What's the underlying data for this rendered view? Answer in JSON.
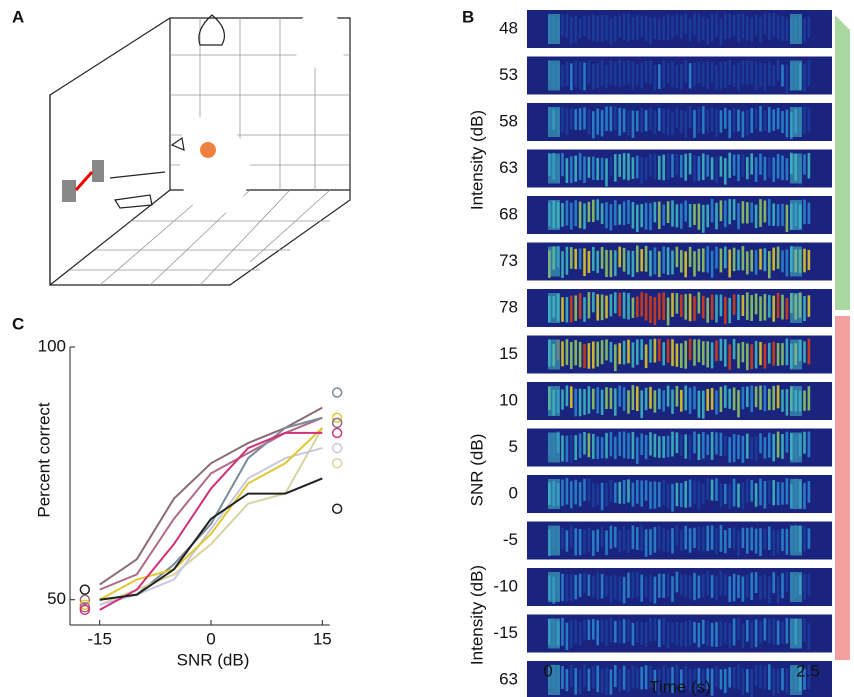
{
  "panels": {
    "a": {
      "label": "A"
    },
    "b": {
      "label": "B",
      "rows": [
        "48",
        "53",
        "58",
        "63",
        "68",
        "73",
        "78",
        "15",
        "10",
        "5",
        "0",
        "-5",
        "-10",
        "-15",
        "63"
      ],
      "axis_labels": [
        "Intensity (dB)",
        "SNR (dB)",
        "Intensity (dB)"
      ],
      "time_ticks": [
        "0",
        "2.5"
      ],
      "time_label": "Time (s)"
    },
    "c": {
      "label": "C"
    }
  },
  "chart_data": {
    "type": "line",
    "xlabel": "SNR (dB)",
    "ylabel": "Percent correct",
    "x": [
      -15,
      -10,
      -5,
      0,
      5,
      10,
      15
    ],
    "xlim": [
      -19,
      19
    ],
    "ylim": [
      45,
      100
    ],
    "xticks": [
      -15,
      0,
      15
    ],
    "yticks": [
      50,
      100
    ],
    "series": [
      {
        "color": "#8c6a78",
        "values": [
          53,
          58,
          70,
          77,
          81,
          84,
          88
        ]
      },
      {
        "color": "#b06a8a",
        "values": [
          52,
          55,
          66,
          75,
          79,
          83,
          86
        ]
      },
      {
        "color": "#7a8c99",
        "values": [
          50,
          51,
          57,
          65,
          78,
          84,
          86
        ]
      },
      {
        "color": "#d8d3a0",
        "values": [
          49,
          52,
          55,
          61,
          69,
          71,
          84
        ]
      },
      {
        "color": "#c8c8e0",
        "values": [
          49,
          51,
          54,
          64,
          74,
          78,
          80
        ]
      },
      {
        "color": "#e0c830",
        "values": [
          50,
          54,
          56,
          63,
          73,
          77,
          84
        ]
      },
      {
        "color": "#d0307a",
        "values": [
          48,
          52,
          61,
          72,
          80,
          83,
          83
        ]
      },
      {
        "color": "#222222",
        "values": [
          50,
          51,
          56,
          66,
          71,
          71,
          74
        ]
      }
    ],
    "markers": {
      "x": [
        -17,
        -17,
        -17,
        -17,
        -17,
        17,
        17,
        17,
        17,
        17,
        17,
        17
      ],
      "y": [
        52,
        50,
        49,
        48.5,
        48,
        91,
        86,
        85,
        83,
        80,
        77,
        68
      ],
      "colors": [
        "#222222",
        "#8c6a78",
        "#e0c830",
        "#b06a8a",
        "#d0307a",
        "#7a8c99",
        "#e0c830",
        "#8c6a78",
        "#d0307a",
        "#c8c8e0",
        "#d8d3a0",
        "#222222"
      ]
    }
  }
}
